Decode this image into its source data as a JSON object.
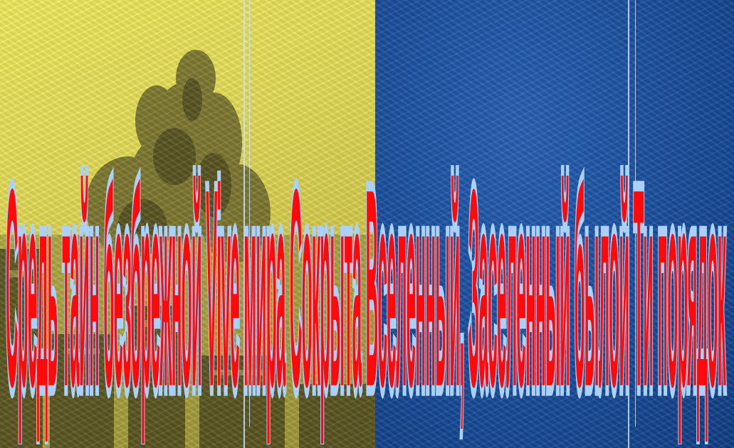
{
  "slide": {
    "text": "Средь тайн безбрежной Vive мира Сокрыта Вселенный, Заселенный былой Ти порядок"
  },
  "colors": {
    "left_background": "#e4dd5a",
    "right_background": "#1c52a2",
    "text_fill": "#ff0a0a",
    "text_outline": "#a9d1fa"
  }
}
